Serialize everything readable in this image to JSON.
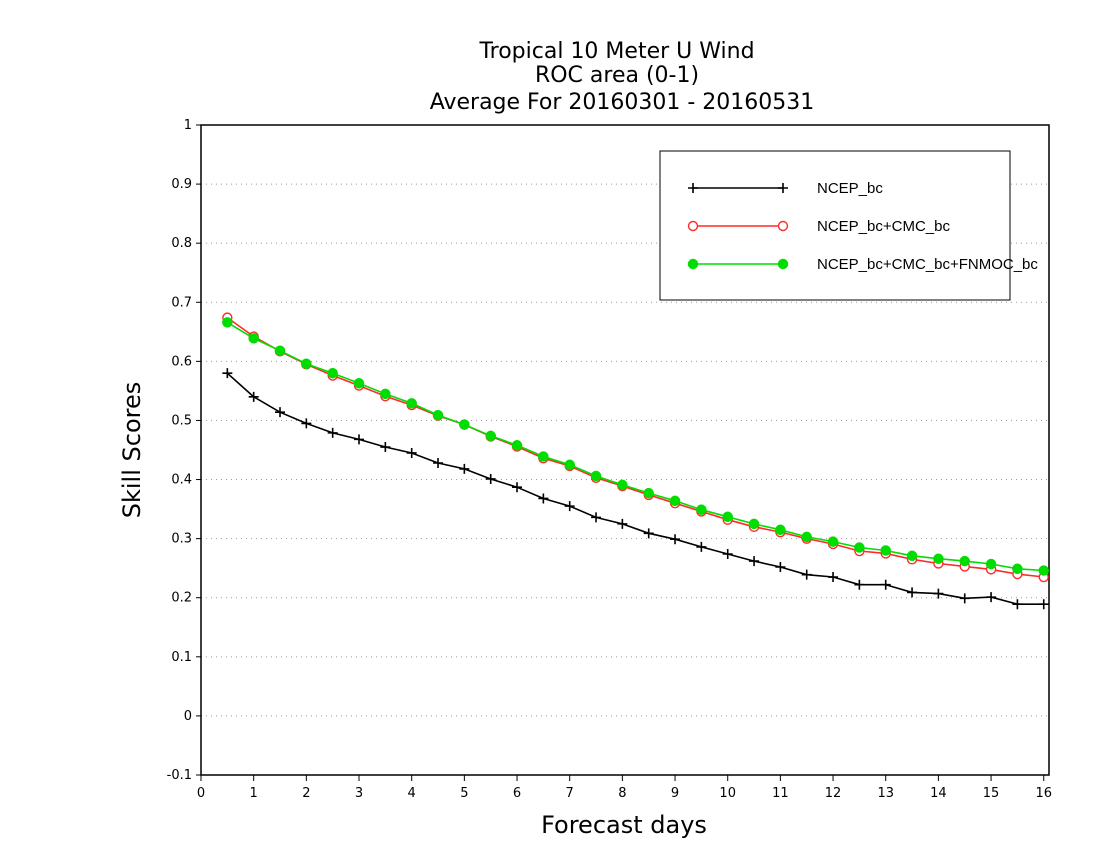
{
  "chart_data": {
    "type": "line",
    "title_lines": [
      "Tropical 10 Meter U Wind",
      "ROC area (0-1)",
      "Average For 20160301 - 20160531"
    ],
    "xlabel": "Forecast days",
    "ylabel": "Skill Scores",
    "xlim": [
      0,
      16.1
    ],
    "ylim": [
      -0.1,
      1
    ],
    "xticks": [
      0,
      1,
      2,
      3,
      4,
      5,
      6,
      7,
      8,
      9,
      10,
      11,
      12,
      13,
      14,
      15,
      16
    ],
    "yticks": [
      -0.1,
      0,
      0.1,
      0.2,
      0.3,
      0.4,
      0.5,
      0.6,
      0.7,
      0.8,
      0.9,
      1
    ],
    "ytick_labels": [
      "-0.1",
      "0",
      "0.1",
      "0.2",
      "0.3",
      "0.4",
      "0.5",
      "0.6",
      "0.7",
      "0.8",
      "0.9",
      "1"
    ],
    "grid": "horizontal-dotted",
    "legend_position": "top-right",
    "x": [
      0.5,
      1,
      1.5,
      2,
      2.5,
      3,
      3.5,
      4,
      4.5,
      5,
      5.5,
      6,
      6.5,
      7,
      7.5,
      8,
      8.5,
      9,
      9.5,
      10,
      10.5,
      11,
      11.5,
      12,
      12.5,
      13,
      13.5,
      14,
      14.5,
      15,
      15.5,
      16
    ],
    "series": [
      {
        "name": "NCEP_bc",
        "color": "#000000",
        "marker": "plus",
        "values": [
          0.58,
          0.54,
          0.514,
          0.495,
          0.479,
          0.468,
          0.455,
          0.445,
          0.428,
          0.418,
          0.401,
          0.387,
          0.368,
          0.355,
          0.336,
          0.325,
          0.309,
          0.299,
          0.286,
          0.274,
          0.262,
          0.252,
          0.239,
          0.235,
          0.222,
          0.222,
          0.209,
          0.207,
          0.199,
          0.201,
          0.189,
          0.189
        ]
      },
      {
        "name": "NCEP_bc+CMC_bc",
        "color": "#ff2a2a",
        "marker": "open-circle",
        "values": [
          0.674,
          0.642,
          0.617,
          0.595,
          0.576,
          0.559,
          0.541,
          0.526,
          0.508,
          0.493,
          0.473,
          0.456,
          0.436,
          0.423,
          0.403,
          0.389,
          0.374,
          0.36,
          0.346,
          0.332,
          0.32,
          0.311,
          0.3,
          0.291,
          0.279,
          0.275,
          0.265,
          0.258,
          0.253,
          0.248,
          0.24,
          0.235
        ]
      },
      {
        "name": "NCEP_bc+CMC_bc+FNMOC_bc",
        "color": "#00dd00",
        "marker": "filled-circle",
        "values": [
          0.666,
          0.639,
          0.618,
          0.596,
          0.58,
          0.563,
          0.545,
          0.529,
          0.509,
          0.493,
          0.474,
          0.458,
          0.439,
          0.425,
          0.406,
          0.391,
          0.377,
          0.364,
          0.349,
          0.337,
          0.325,
          0.315,
          0.303,
          0.295,
          0.285,
          0.28,
          0.271,
          0.266,
          0.262,
          0.257,
          0.249,
          0.246
        ]
      }
    ]
  }
}
